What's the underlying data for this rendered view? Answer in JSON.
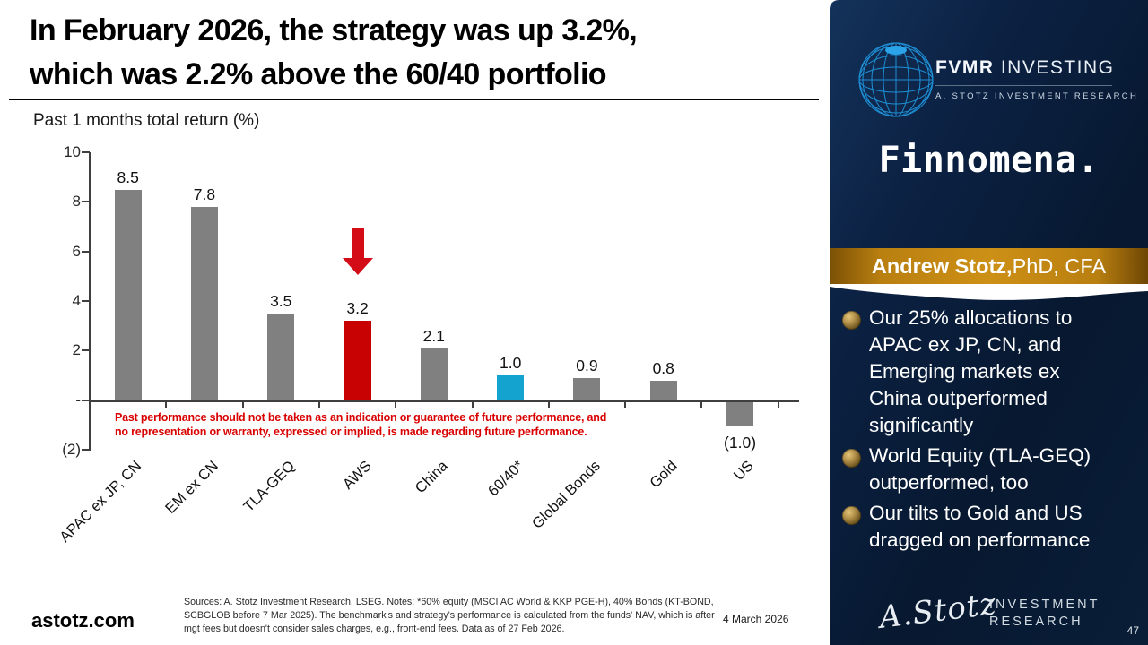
{
  "slide": {
    "title_line1": "In February 2026, the strategy was up 3.2%,",
    "title_line2": "which was 2.2% above the 60/40 portfolio",
    "website": "astotz.com",
    "sources_note": "Sources: A. Stotz Investment Research, LSEG. Notes: *60% equity (MSCI AC World & KKP PGE-H), 40% Bonds (KT-BOND, SCBGLOB before 7 Mar 2025). The benchmark's and strategy's performance is calculated from the funds' NAV, which is after mgt fees but doesn't consider sales charges, e.g., front-end fees. Data as of 27 Feb 2026.",
    "date": "4 March 2026",
    "disclaimer_line1": "Past performance should not be taken as an indication or guarantee of future performance, and",
    "disclaimer_line2": "no representation or warranty, expressed or implied, is made regarding future performance.",
    "disclaimer_color": "#d90000"
  },
  "chart_data": {
    "type": "bar",
    "title": "Past 1 months total return (%)",
    "categories": [
      "APAC ex JP, CN",
      "EM ex CN",
      "TLA-GEQ",
      "AWS",
      "China",
      "60/40*",
      "Global Bonds",
      "Gold",
      "US"
    ],
    "values": [
      8.5,
      7.8,
      3.5,
      3.2,
      2.1,
      1.0,
      0.9,
      0.8,
      -1.0
    ],
    "labels": [
      "8.5",
      "7.8",
      "3.5",
      "3.2",
      "2.1",
      "1.0",
      "0.9",
      "0.8",
      "(1.0)"
    ],
    "colors": [
      "#808080",
      "#808080",
      "#808080",
      "#c80202",
      "#808080",
      "#14a3ce",
      "#808080",
      "#808080",
      "#808080"
    ],
    "highlight_index": 3,
    "arrow_color": "#d40c18",
    "xlabel": "",
    "ylabel": "",
    "ylim": [
      -2,
      10
    ],
    "yticks": [
      {
        "value": 10,
        "label": "10"
      },
      {
        "value": 8,
        "label": "8"
      },
      {
        "value": 6,
        "label": "6"
      },
      {
        "value": 4,
        "label": "4"
      },
      {
        "value": 2,
        "label": "2"
      },
      {
        "value": 0,
        "label": "-"
      },
      {
        "value": -2,
        "label": "(2)"
      }
    ],
    "grid": false,
    "legend": false
  },
  "sidebar": {
    "brand": {
      "bold": "FVMR",
      "light": " INVESTING",
      "sub": "A. STOTZ INVESTMENT RESEARCH",
      "globe_color": "#1e8fd5"
    },
    "partner_logo": "Finnomena.",
    "author_banner": {
      "name": "Andrew Stotz,",
      "credentials": " PhD, CFA"
    },
    "bullets": [
      "Our 25% allocations to APAC ex JP, CN, and Emerging markets ex China outperformed significantly",
      "World Equity (TLA-GEQ) outperformed, too",
      "Our tilts to Gold and US dragged on performance"
    ],
    "footer": {
      "signature": "A.Stotz",
      "org_line1": "INVESTMENT",
      "org_line2": "RESEARCH"
    },
    "page_number": "47",
    "colors": {
      "navy": "#0b2142",
      "gold": "#cd9016",
      "bullet_gold": "#b3914a"
    }
  }
}
